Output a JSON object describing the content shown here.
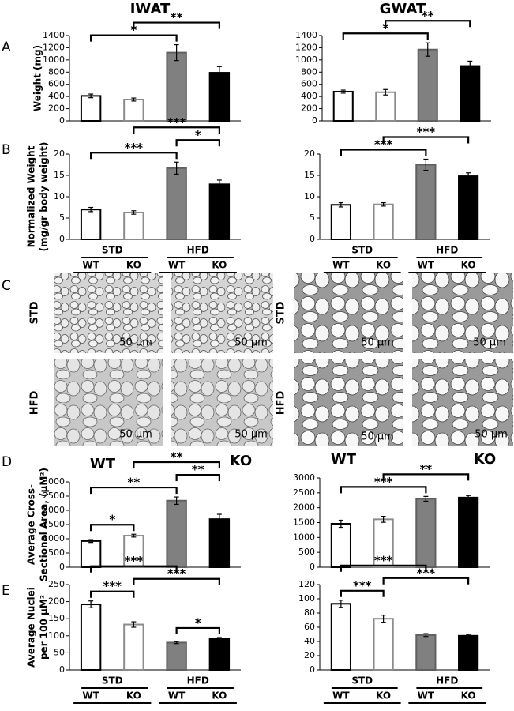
{
  "figure": {
    "columns": [
      "IWAT",
      "GWAT"
    ],
    "panel_letters": [
      "A",
      "B",
      "C",
      "D",
      "E"
    ],
    "panel_d_headers": [
      [
        "WT",
        "KO"
      ],
      [
        "WT",
        "KO"
      ]
    ]
  },
  "micrographs": {
    "row_labels": [
      [
        "STD",
        "HFD"
      ],
      [
        "STD",
        "HFD"
      ]
    ],
    "scale_bars": [
      "50 µm",
      "50 µm",
      "50 µm",
      "50 µm",
      "50 µm",
      "50 µm",
      "50 µm",
      "50 µm"
    ]
  },
  "chart_data": [
    {
      "type": "bar",
      "ylabel": [
        "Weight (mg)"
      ],
      "categories": [
        null,
        null,
        null,
        null
      ],
      "values": [
        410,
        350,
        1120,
        790
      ],
      "errors": [
        30,
        25,
        130,
        100
      ],
      "fills": [
        "#ffffff",
        "#ffffff",
        "#808080",
        "#000000"
      ],
      "edges": [
        "#000000",
        "#8c8c8c",
        "#606060",
        "#000000"
      ],
      "ylim": [
        0,
        1400
      ],
      "yticks": [
        0,
        200,
        400,
        600,
        800,
        1000,
        1200,
        1400
      ],
      "significance": [
        {
          "between": [
            0,
            2
          ],
          "label": "*"
        },
        {
          "between": [
            1,
            3
          ],
          "label": "**"
        }
      ]
    },
    {
      "type": "bar",
      "categories": [
        null,
        null,
        null,
        null
      ],
      "values": [
        480,
        470,
        1170,
        900
      ],
      "errors": [
        25,
        45,
        110,
        80
      ],
      "fills": [
        "#ffffff",
        "#ffffff",
        "#808080",
        "#000000"
      ],
      "edges": [
        "#000000",
        "#8c8c8c",
        "#606060",
        "#000000"
      ],
      "ylim": [
        0,
        1400
      ],
      "yticks": [
        0,
        200,
        400,
        600,
        800,
        1000,
        1200,
        1400
      ],
      "significance": [
        {
          "between": [
            0,
            2
          ],
          "label": "*"
        },
        {
          "between": [
            1,
            3
          ],
          "label": "**"
        }
      ]
    },
    {
      "type": "bar",
      "ylabel": [
        "Normalized Weight",
        "(mg/gr body weight)"
      ],
      "categories": [
        "WT",
        "KO",
        "WT",
        "KO"
      ],
      "groups": [
        "STD",
        "HFD"
      ],
      "values": [
        7.0,
        6.3,
        16.7,
        12.9
      ],
      "errors": [
        0.5,
        0.4,
        1.4,
        1.0
      ],
      "fills": [
        "#ffffff",
        "#ffffff",
        "#808080",
        "#000000"
      ],
      "edges": [
        "#000000",
        "#8c8c8c",
        "#606060",
        "#000000"
      ],
      "ylim": [
        0,
        20
      ],
      "yticks": [
        0,
        5,
        10,
        15,
        20
      ],
      "significance": [
        {
          "between": [
            0,
            2
          ],
          "label": "***"
        },
        {
          "between": [
            2,
            3
          ],
          "label": "*"
        },
        {
          "between": [
            1,
            3
          ],
          "label": "***"
        }
      ]
    },
    {
      "type": "bar",
      "categories": [
        "WT",
        "KO",
        "WT",
        "KO"
      ],
      "groups": [
        "STD",
        "HFD"
      ],
      "values": [
        8.1,
        8.2,
        17.5,
        14.8
      ],
      "errors": [
        0.5,
        0.4,
        1.3,
        0.8
      ],
      "fills": [
        "#ffffff",
        "#ffffff",
        "#808080",
        "#000000"
      ],
      "edges": [
        "#000000",
        "#8c8c8c",
        "#606060",
        "#000000"
      ],
      "ylim": [
        0,
        20
      ],
      "yticks": [
        0,
        5,
        10,
        15,
        20
      ],
      "significance": [
        {
          "between": [
            0,
            2
          ],
          "label": "***"
        },
        {
          "between": [
            1,
            3
          ],
          "label": "***"
        }
      ]
    },
    {
      "type": "bar",
      "ylabel": [
        "Average Cross-",
        "Sectional Area, (µM²)"
      ],
      "categories": [
        null,
        null,
        null,
        null
      ],
      "values": [
        920,
        1110,
        2340,
        1690
      ],
      "errors": [
        50,
        50,
        130,
        170
      ],
      "fills": [
        "#ffffff",
        "#ffffff",
        "#808080",
        "#000000"
      ],
      "edges": [
        "#000000",
        "#8c8c8c",
        "#606060",
        "#000000"
      ],
      "ylim": [
        0,
        3000
      ],
      "yticks": [
        0,
        500,
        1000,
        1500,
        2000,
        2500,
        3000
      ],
      "significance": [
        {
          "between": [
            0,
            1
          ],
          "label": "*"
        },
        {
          "between": [
            0,
            2
          ],
          "label": "**"
        },
        {
          "between": [
            2,
            3
          ],
          "label": "**"
        },
        {
          "between": [
            1,
            3
          ],
          "label": "**"
        }
      ]
    },
    {
      "type": "bar",
      "categories": [
        null,
        null,
        null,
        null
      ],
      "values": [
        1460,
        1610,
        2300,
        2340
      ],
      "errors": [
        120,
        100,
        80,
        70
      ],
      "fills": [
        "#ffffff",
        "#ffffff",
        "#808080",
        "#000000"
      ],
      "edges": [
        "#000000",
        "#8c8c8c",
        "#606060",
        "#000000"
      ],
      "ylim": [
        0,
        3000
      ],
      "yticks": [
        0,
        500,
        1000,
        1500,
        2000,
        2500,
        3000
      ],
      "significance": [
        {
          "between": [
            0,
            2
          ],
          "label": "***"
        },
        {
          "between": [
            1,
            3
          ],
          "label": "**"
        }
      ]
    },
    {
      "type": "bar",
      "ylabel": [
        "Average Nuclei",
        "per 100 µM²"
      ],
      "categories": [
        "WT",
        "KO",
        "WT",
        "KO"
      ],
      "groups": [
        "STD",
        "HFD"
      ],
      "values": [
        192,
        133,
        80,
        91
      ],
      "errors": [
        10,
        8,
        3,
        4
      ],
      "fills": [
        "#ffffff",
        "#ffffff",
        "#808080",
        "#000000"
      ],
      "edges": [
        "#000000",
        "#8c8c8c",
        "#606060",
        "#000000"
      ],
      "ylim": [
        0,
        250
      ],
      "yticks": [
        0,
        50,
        100,
        150,
        200,
        250
      ],
      "significance": [
        {
          "between": [
            0,
            1
          ],
          "label": "***"
        },
        {
          "between": [
            2,
            3
          ],
          "label": "*"
        },
        {
          "between": [
            1,
            3
          ],
          "label": "***"
        },
        {
          "between": [
            0,
            2
          ],
          "label": "***"
        }
      ]
    },
    {
      "type": "bar",
      "categories": [
        "WT",
        "KO",
        "WT",
        "KO"
      ],
      "groups": [
        "STD",
        "HFD"
      ],
      "values": [
        93,
        72,
        49,
        48
      ],
      "errors": [
        5,
        5,
        2,
        2
      ],
      "fills": [
        "#ffffff",
        "#ffffff",
        "#808080",
        "#000000"
      ],
      "edges": [
        "#000000",
        "#8c8c8c",
        "#606060",
        "#000000"
      ],
      "ylim": [
        0,
        120
      ],
      "yticks": [
        0,
        20,
        40,
        60,
        80,
        100,
        120
      ],
      "significance": [
        {
          "between": [
            0,
            1
          ],
          "label": "***"
        },
        {
          "between": [
            1,
            3
          ],
          "label": "***"
        },
        {
          "between": [
            0,
            2
          ],
          "label": "***"
        }
      ]
    }
  ]
}
